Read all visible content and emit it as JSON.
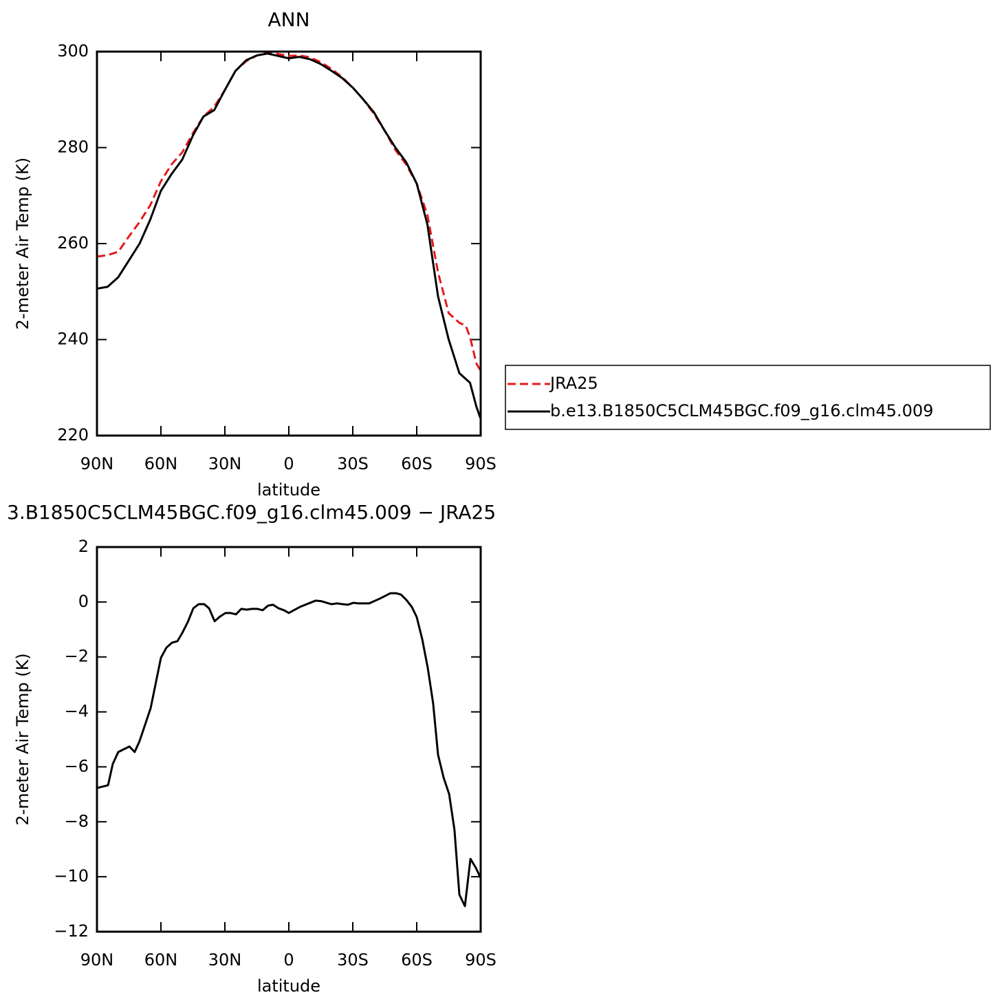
{
  "chart_data": [
    {
      "type": "line",
      "title": "ANN",
      "xlabel": "latitude",
      "ylabel": "2-meter Air Temp (K)",
      "xlim": [
        90,
        -90
      ],
      "ylim": [
        220,
        300
      ],
      "xticks": [
        {
          "value": 90,
          "label": "90N"
        },
        {
          "value": 60,
          "label": "60N"
        },
        {
          "value": 30,
          "label": "30N"
        },
        0,
        {
          "value": -30,
          "label": "30S"
        },
        {
          "value": -60,
          "label": "60S"
        },
        {
          "value": -90,
          "label": "90S"
        }
      ],
      "yticks": [
        220,
        240,
        260,
        280,
        300
      ],
      "legend": "right",
      "series": [
        {
          "name": "JRA25",
          "color": "#e41a1c",
          "dash": true,
          "x": [
            90,
            85,
            80,
            75,
            70,
            65,
            60,
            55,
            50,
            45,
            40,
            35,
            30,
            25,
            20,
            15,
            10,
            5,
            0,
            -5,
            -10,
            -15,
            -20,
            -25,
            -30,
            -35,
            -40,
            -45,
            -50,
            -55,
            -60,
            -65,
            -70,
            -75,
            -80,
            -83,
            -85,
            -88,
            -90
          ],
          "values": [
            257.3,
            257.6,
            258.3,
            261.5,
            264.5,
            268,
            273,
            276.5,
            279,
            283,
            286.5,
            288.5,
            292,
            296,
            298,
            299.2,
            299.7,
            299.5,
            299.1,
            299.2,
            298.8,
            297.8,
            296.4,
            294.7,
            292.5,
            290,
            287,
            283.5,
            279.5,
            276.5,
            272.5,
            266,
            254,
            245.5,
            243.5,
            242.9,
            240.5,
            235,
            233.5
          ]
        },
        {
          "name": "b.e13.B1850C5CLM45BGC.f09_g16.clm45.009",
          "color": "#000000",
          "dash": false,
          "x": [
            90,
            85,
            80,
            75,
            70,
            65,
            60,
            55,
            50,
            45,
            40,
            35,
            30,
            25,
            20,
            15,
            10,
            5,
            0,
            -5,
            -10,
            -15,
            -20,
            -25,
            -30,
            -35,
            -40,
            -45,
            -50,
            -55,
            -60,
            -65,
            -70,
            -75,
            -80,
            -85,
            -88,
            -90
          ],
          "values": [
            250.6,
            251,
            253,
            256.5,
            260,
            265,
            271,
            274.5,
            277.5,
            282.5,
            286.5,
            287.8,
            292,
            296,
            298.2,
            299.2,
            299.6,
            299.1,
            298.6,
            298.9,
            298.4,
            297.4,
            296,
            294.5,
            292.5,
            290,
            287.3,
            283.5,
            280,
            277,
            272.5,
            264,
            249,
            240,
            233,
            231,
            226,
            223.5
          ]
        }
      ]
    },
    {
      "type": "line",
      "title": "3.B1850C5CLM45BGC.f09_g16.clm45.009 − JRA25",
      "xlabel": "latitude",
      "ylabel": "2-meter Air Temp (K)",
      "xlim": [
        90,
        -90
      ],
      "ylim": [
        -12,
        2
      ],
      "xticks": [
        {
          "value": 90,
          "label": "90N"
        },
        {
          "value": 60,
          "label": "60N"
        },
        {
          "value": 30,
          "label": "30N"
        },
        0,
        {
          "value": -30,
          "label": "30S"
        },
        {
          "value": -60,
          "label": "60S"
        },
        {
          "value": -90,
          "label": "90S"
        }
      ],
      "yticks": [
        {
          "value": -12,
          "label": "−12"
        },
        {
          "value": -10,
          "label": "−10"
        },
        {
          "value": -8,
          "label": "−8"
        },
        {
          "value": -6,
          "label": "−6"
        },
        {
          "value": -4,
          "label": "−4"
        },
        {
          "value": -2,
          "label": "−2"
        },
        0,
        2
      ],
      "series": [
        {
          "color": "#000000",
          "dash": false,
          "x": [
            90,
            84.8,
            82.6,
            80,
            74.8,
            72.3,
            70,
            64.8,
            60,
            57.4,
            54.8,
            52.3,
            50,
            47.4,
            44.8,
            42.3,
            39.7,
            37.4,
            34.8,
            32.3,
            29.7,
            27.4,
            24.8,
            22.3,
            19.7,
            17.4,
            14.8,
            12.3,
            9.7,
            7.4,
            4.8,
            2.3,
            0,
            -5.2,
            -10,
            -12.6,
            -15.2,
            -20,
            -22.6,
            -25.2,
            -27.7,
            -30.3,
            -32.6,
            -37.7,
            -42.6,
            -47.7,
            -50.3,
            -52.6,
            -55.2,
            -57.7,
            -60,
            -62.6,
            -65.2,
            -67.7,
            -70,
            -72.6,
            -75.2,
            -77.7,
            -80,
            -82.6,
            -85.2,
            -87.7,
            -90
          ],
          "values": [
            -6.77,
            -6.67,
            -5.9,
            -5.46,
            -5.26,
            -5.46,
            -5.06,
            -3.86,
            -2.03,
            -1.66,
            -1.48,
            -1.43,
            -1.13,
            -0.73,
            -0.23,
            -0.08,
            -0.08,
            -0.23,
            -0.7,
            -0.53,
            -0.4,
            -0.4,
            -0.45,
            -0.25,
            -0.28,
            -0.25,
            -0.25,
            -0.3,
            -0.13,
            -0.1,
            -0.23,
            -0.3,
            -0.4,
            -0.18,
            -0.03,
            0.05,
            0.03,
            -0.08,
            -0.05,
            -0.08,
            -0.1,
            -0.03,
            -0.05,
            -0.05,
            0.12,
            0.32,
            0.32,
            0.27,
            0.07,
            -0.18,
            -0.55,
            -1.36,
            -2.41,
            -3.69,
            -5.56,
            -6.39,
            -6.99,
            -8.29,
            -10.65,
            -11.07,
            -9.35,
            -9.67,
            -10.05
          ]
        }
      ]
    }
  ]
}
